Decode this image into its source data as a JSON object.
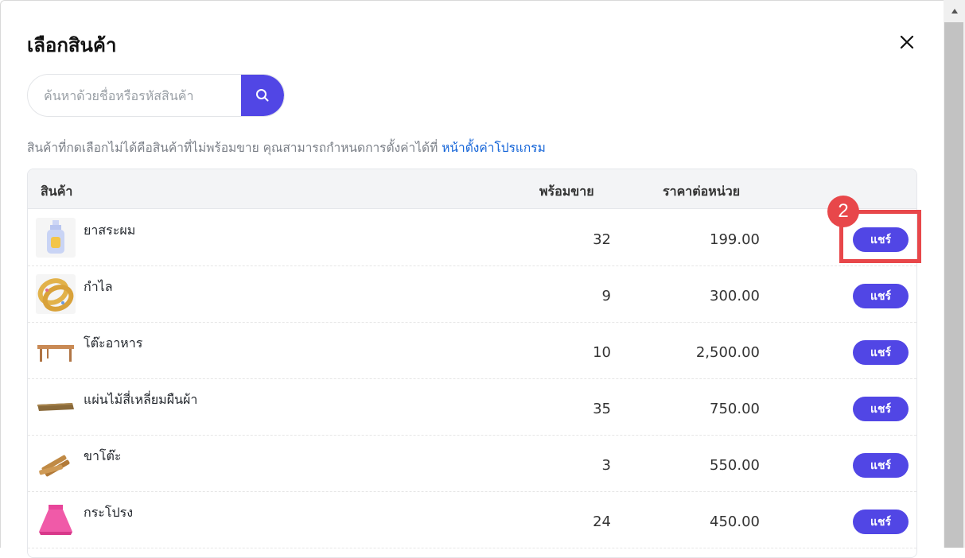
{
  "dialog": {
    "title": "เลือกสินค้า",
    "close_icon": "close-icon"
  },
  "search": {
    "placeholder": "ค้นหาด้วยชื่อหรือรหัสสินค้า",
    "value": "",
    "button_icon": "search-icon"
  },
  "note": {
    "text": "สินค้าที่กดเลือกไม่ได้คือสินค้าที่ไม่พร้อมขาย คุณสามารถกำหนดการตั้งค่าได้ที่ ",
    "link_text": "หน้าตั้งค่าโปรแกรม"
  },
  "table": {
    "headers": {
      "product": "สินค้า",
      "available": "พร้อมขาย",
      "unit_price": "ราคาต่อหน่วย"
    },
    "rows": [
      {
        "name": "ยาสระผม",
        "qty": "32",
        "price": "199.00",
        "action": "แชร์",
        "image_icon": "shampoo-bottle-image"
      },
      {
        "name": "กำไล",
        "qty": "9",
        "price": "300.00",
        "action": "แชร์",
        "image_icon": "bracelet-image"
      },
      {
        "name": "โต๊ะอาหาร",
        "qty": "10",
        "price": "2,500.00",
        "action": "แชร์",
        "image_icon": "dining-table-image"
      },
      {
        "name": "แผ่นไม้สี่เหลี่ยมผืนผ้า",
        "qty": "35",
        "price": "750.00",
        "action": "แชร์",
        "image_icon": "wood-plank-image"
      },
      {
        "name": "ขาโต๊ะ",
        "qty": "3",
        "price": "550.00",
        "action": "แชร์",
        "image_icon": "table-legs-image"
      },
      {
        "name": "กระโปรง",
        "qty": "24",
        "price": "450.00",
        "action": "แชร์",
        "image_icon": "skirt-image"
      }
    ]
  },
  "annotation": {
    "step_number": "2",
    "color": "#e8474a"
  },
  "colors": {
    "accent": "#5146e5",
    "link": "#1565d8"
  }
}
